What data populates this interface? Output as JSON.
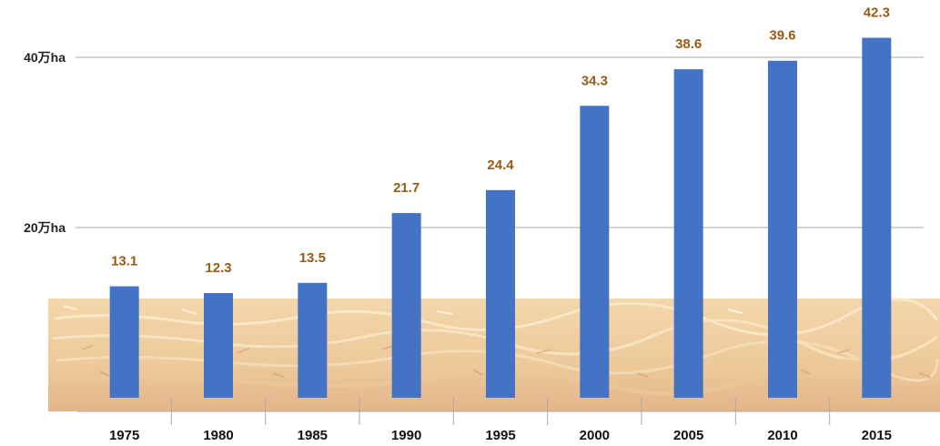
{
  "chart_data": {
    "type": "bar",
    "categories": [
      "1975",
      "1980",
      "1985",
      "1990",
      "1995",
      "2000",
      "2005",
      "2010",
      "2015"
    ],
    "values": [
      13.1,
      12.3,
      13.5,
      21.7,
      24.4,
      34.3,
      38.6,
      39.6,
      42.3
    ],
    "data_labels": [
      "13.1",
      "12.3",
      "13.5",
      "21.7",
      "24.4",
      "34.3",
      "38.6",
      "39.6",
      "42.3"
    ],
    "y_ticks": [
      {
        "value": 20,
        "label": "20万ha"
      },
      {
        "value": 40,
        "label": "40万ha"
      }
    ],
    "ylim": [
      0,
      44
    ],
    "grid": true,
    "legend": "none",
    "colors": {
      "bar": "#4472c4",
      "data_label": "#9a5a12",
      "grid": "#aaaaaa",
      "ground": "#efd2a4",
      "ground_dark": "#e0b98a"
    }
  }
}
